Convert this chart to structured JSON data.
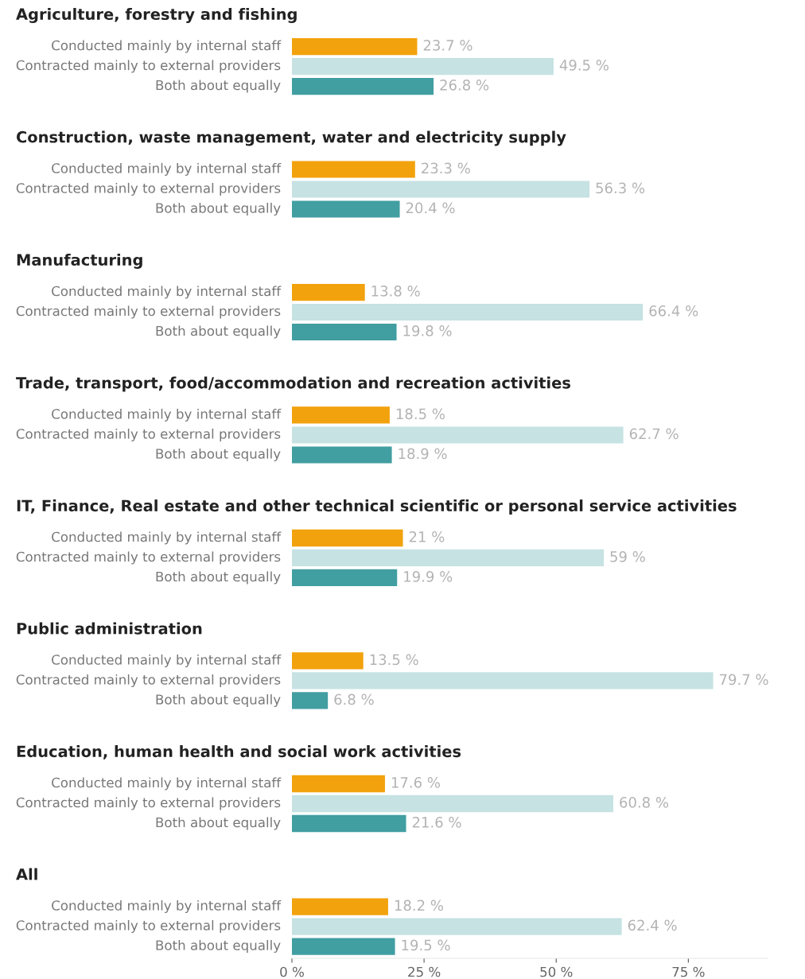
{
  "chart_data": {
    "type": "bar",
    "orientation": "horizontal",
    "categories": [
      "Agriculture, forestry and fishing",
      "Construction, waste management, water and electricity supply",
      "Manufacturing",
      "Trade, transport, food/accommodation and recreation activities",
      "IT, Finance, Real estate and other technical scientific or personal service activities",
      "Public administration",
      "Education, human health and social work activities",
      "All"
    ],
    "series": [
      {
        "name": "Conducted mainly by internal staff",
        "color": "#f2a20c",
        "values": [
          23.7,
          23.3,
          13.8,
          18.5,
          21,
          13.5,
          17.6,
          18.2
        ],
        "value_labels": [
          "23.7 %",
          "23.3 %",
          "13.8 %",
          "18.5 %",
          "21 %",
          "13.5 %",
          "17.6 %",
          "18.2 %"
        ]
      },
      {
        "name": "Contracted mainly to external providers",
        "color": "#c6e2e3",
        "values": [
          49.5,
          56.3,
          66.4,
          62.7,
          59,
          79.7,
          60.8,
          62.4
        ],
        "value_labels": [
          "49.5 %",
          "56.3 %",
          "66.4 %",
          "62.7 %",
          "59 %",
          "79.7 %",
          "60.8 %",
          "62.4 %"
        ]
      },
      {
        "name": "Both about equally",
        "color": "#419ea1",
        "values": [
          26.8,
          20.4,
          19.8,
          18.9,
          19.9,
          6.8,
          21.6,
          19.5
        ],
        "value_labels": [
          "26.8 %",
          "20.4 %",
          "19.8 %",
          "18.9 %",
          "19.9 %",
          "6.8 %",
          "21.6 %",
          "19.5 %"
        ]
      }
    ],
    "xlim": [
      0,
      90
    ],
    "xticks": [
      {
        "value": 0,
        "label": "0 %"
      },
      {
        "value": 25,
        "label": "25 %"
      },
      {
        "value": 50,
        "label": "50 %"
      },
      {
        "value": 75,
        "label": "75 %"
      }
    ]
  }
}
